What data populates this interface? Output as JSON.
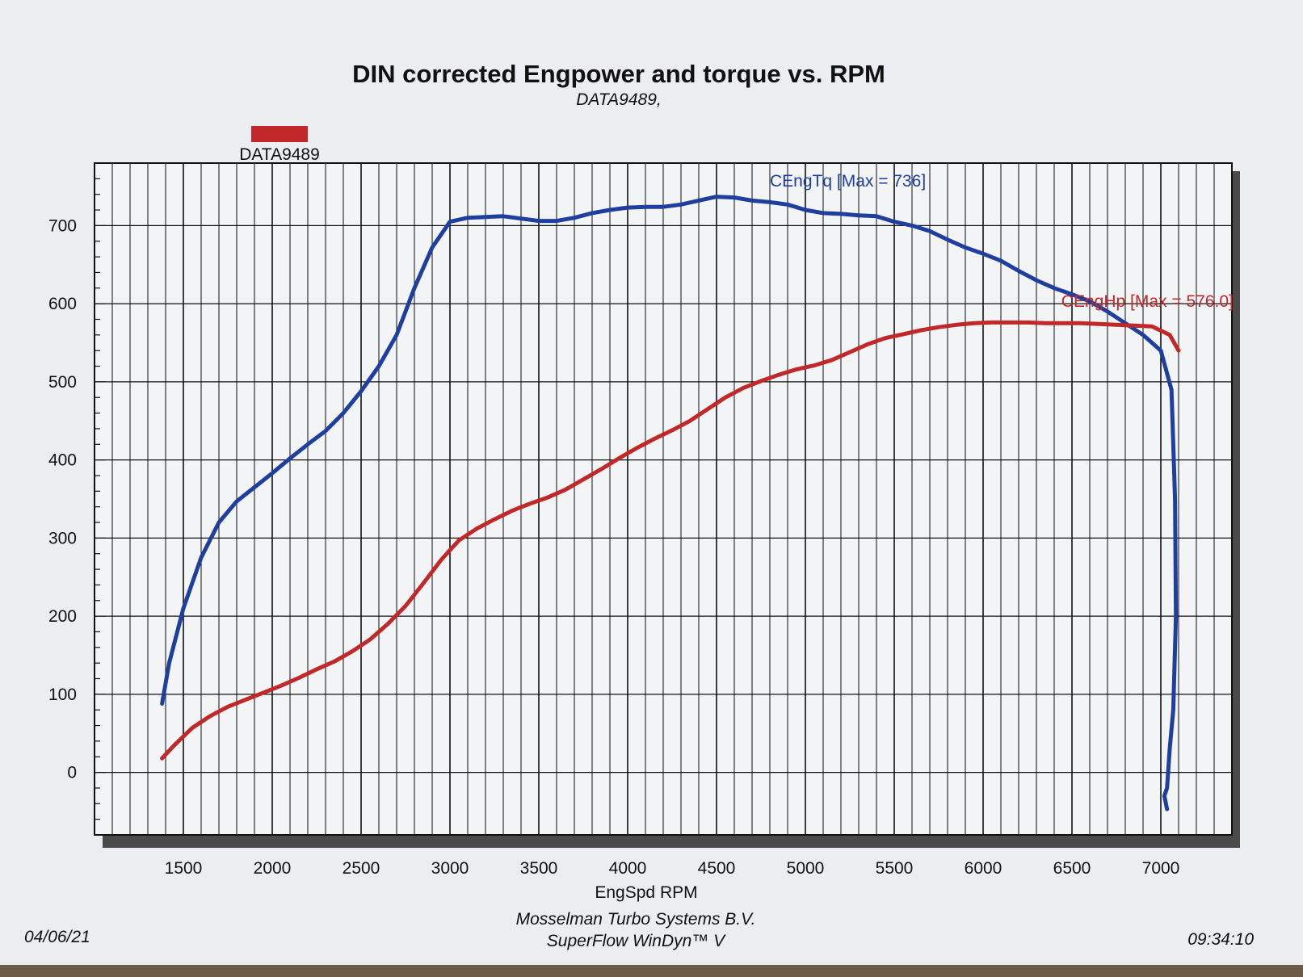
{
  "chart_data": {
    "type": "line",
    "title": "DIN corrected Engpower and torque vs. RPM",
    "subtitle": "DATA9489,",
    "legend": {
      "label": "DATA9489",
      "color": "#c0282a",
      "placement": "top-left"
    },
    "xlabel": "EngSpd  RPM",
    "xlim": [
      1000,
      7400
    ],
    "ylim": [
      -80,
      780
    ],
    "x_ticks": [
      1500,
      2000,
      2500,
      3000,
      3500,
      4000,
      4500,
      5000,
      5500,
      6000,
      6500,
      7000
    ],
    "y_ticks": [
      0,
      100,
      200,
      300,
      400,
      500,
      600,
      700
    ],
    "grid": true,
    "series": [
      {
        "name": "CEngTq [Max = 736]",
        "color": "#1f3f9e",
        "x": [
          1380,
          1420,
          1500,
          1600,
          1700,
          1800,
          1900,
          2000,
          2100,
          2200,
          2300,
          2400,
          2500,
          2600,
          2700,
          2800,
          2900,
          3000,
          3100,
          3200,
          3300,
          3400,
          3500,
          3600,
          3700,
          3800,
          3900,
          4000,
          4100,
          4200,
          4300,
          4400,
          4500,
          4600,
          4700,
          4800,
          4900,
          5000,
          5100,
          5200,
          5300,
          5400,
          5500,
          5600,
          5700,
          5800,
          5900,
          6000,
          6100,
          6200,
          6300,
          6400,
          6500,
          6600,
          6700,
          6800,
          6900,
          7000,
          7060,
          7080,
          7085,
          7070,
          7050,
          7035,
          7020,
          7035
        ],
        "y": [
          88,
          140,
          210,
          275,
          320,
          347,
          365,
          383,
          402,
          420,
          437,
          460,
          488,
          520,
          560,
          620,
          672,
          705,
          710,
          711,
          712,
          709,
          706,
          706,
          710,
          716,
          720,
          723,
          724,
          724,
          727,
          732,
          737,
          736,
          732,
          730,
          727,
          720,
          716,
          715,
          713,
          712,
          705,
          700,
          693,
          682,
          672,
          664,
          655,
          642,
          630,
          620,
          612,
          603,
          590,
          575,
          560,
          540,
          490,
          350,
          200,
          80,
          30,
          -20,
          -30,
          -47
        ]
      },
      {
        "name": "CEngHp [Max = 576.0]",
        "color": "#c0282a",
        "x": [
          1380,
          1450,
          1550,
          1650,
          1750,
          1850,
          1950,
          2050,
          2150,
          2250,
          2350,
          2450,
          2550,
          2650,
          2750,
          2850,
          2950,
          3050,
          3150,
          3250,
          3350,
          3450,
          3550,
          3650,
          3750,
          3850,
          3950,
          4050,
          4150,
          4250,
          4350,
          4450,
          4550,
          4650,
          4750,
          4850,
          4950,
          5050,
          5150,
          5250,
          5350,
          5450,
          5550,
          5650,
          5750,
          5850,
          5950,
          6050,
          6150,
          6250,
          6350,
          6450,
          6550,
          6650,
          6750,
          6850,
          6950,
          7050,
          7100
        ],
        "y": [
          18,
          35,
          57,
          72,
          84,
          93,
          102,
          111,
          121,
          132,
          142,
          155,
          170,
          190,
          213,
          242,
          272,
          297,
          312,
          324,
          335,
          344,
          352,
          362,
          375,
          388,
          402,
          415,
          427,
          438,
          450,
          465,
          480,
          492,
          501,
          509,
          516,
          521,
          528,
          538,
          548,
          556,
          561,
          566,
          570,
          573,
          575,
          576,
          576,
          576,
          575,
          575,
          575,
          574,
          573,
          572,
          571,
          560,
          540
        ]
      }
    ]
  },
  "footer": {
    "date": "04/06/21",
    "company": "Mosselman Turbo Systems B.V.",
    "software": "SuperFlow WinDyn™ V",
    "time": "09:34:10"
  }
}
